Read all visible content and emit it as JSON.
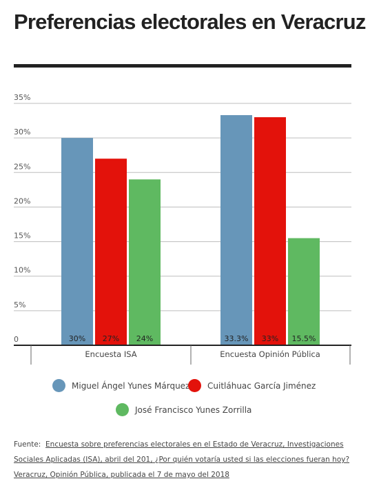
{
  "title": "Preferencias electorales en Veracruz",
  "chart_data": {
    "type": "bar",
    "categories": [
      "Encuesta ISA",
      "Encuesta Opinión Pública"
    ],
    "series": [
      {
        "name": "Miguel Ángel Yunes Márquez",
        "values": [
          30,
          33.3
        ],
        "labels": [
          "30%",
          "33.3%"
        ],
        "color": "#6796b9"
      },
      {
        "name": "Cuitláhuac García Jiménez",
        "values": [
          27,
          33
        ],
        "labels": [
          "27%",
          "33%"
        ],
        "color": "#e3120b"
      },
      {
        "name": "José Francisco Yunes Zorrilla",
        "values": [
          24,
          15.5
        ],
        "labels": [
          "24%",
          "15.5%"
        ],
        "color": "#5fb961"
      }
    ],
    "ylim": [
      0,
      35
    ],
    "yticks": [
      0,
      5,
      10,
      15,
      20,
      25,
      30,
      35
    ],
    "ytick_labels": [
      "0",
      "5%",
      "10%",
      "15%",
      "20%",
      "25%",
      "30%",
      "35%"
    ],
    "grid": true,
    "legend_position": "bottom",
    "label_color": "#222222"
  },
  "source": {
    "prefix": "Fuente:",
    "text": "Encuesta sobre preferencias electorales en el Estado de Veracruz, Investigaciones Sociales Aplicadas (ISA), abril del 201, ¿Por quién votaría usted si las elecciones fueran hoy? Veracruz, Opinión Pública, publicada el 7 de mayo del 2018"
  }
}
